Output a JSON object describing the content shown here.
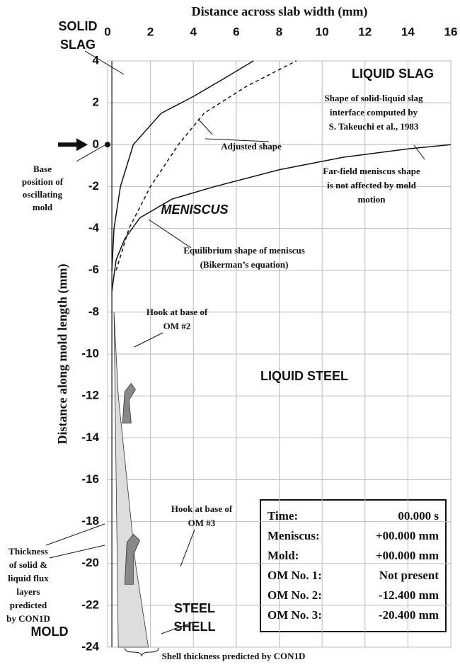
{
  "chart_data": {
    "type": "line",
    "x_label": "Distance across slab width (mm)",
    "y_label": "Distance along mold length (mm)",
    "xlim": [
      0,
      16
    ],
    "xticks": [
      0,
      2,
      4,
      6,
      8,
      10,
      12,
      14,
      16
    ],
    "ylim": [
      -24,
      4
    ],
    "yticks": [
      4,
      2,
      0,
      -2,
      -4,
      -6,
      -8,
      -10,
      -12,
      -14,
      -16,
      -18,
      -20,
      -22,
      -24
    ],
    "grid": true,
    "series": [
      {
        "name": "Equilibrium shape of meniscus",
        "color": "#111",
        "dash": false,
        "x": [
          0.2,
          0.4,
          0.8,
          1.5,
          3,
          5,
          8,
          11,
          14,
          16
        ],
        "values": [
          -7,
          -5.5,
          -4.5,
          -3.5,
          -2.6,
          -2,
          -1.2,
          -0.6,
          -0.2,
          0
        ]
      },
      {
        "name": "Adjusted shape",
        "color": "#111",
        "dash": false,
        "x": [
          0.2,
          0.3,
          0.6,
          1.2,
          2.5,
          4,
          5.5,
          6.8
        ],
        "values": [
          -6,
          -4,
          -2,
          0,
          1.5,
          2.3,
          3.2,
          4
        ]
      },
      {
        "name": "Shape of solid-liquid slag interface computed by S. Takeuchi et al., 1983",
        "color": "#111",
        "dash": true,
        "x": [
          0.4,
          1,
          2,
          3.3,
          4.5,
          6.5,
          8.8
        ],
        "values": [
          -6,
          -4,
          -2,
          0,
          1.5,
          2.8,
          4
        ]
      }
    ],
    "annotations": [
      "SOLID",
      "SLAG",
      "LIQUID SLAG",
      "Shape of solid-liquid slag",
      "interface computed by",
      "S. Takeuchi et al., 1983",
      "Adjusted shape",
      "Base",
      "position of",
      "oscillating",
      "mold",
      "Far-field meniscus shape",
      "is not affected by mold",
      "motion",
      "MENISCUS",
      "Equilibrium shape of meniscus",
      "(Bikerman’s equation)",
      "Hook at base of",
      "OM #2",
      "LIQUID STEEL",
      "Thickness",
      "of solid &",
      "liquid flux",
      "layers",
      "predicted",
      "by CON1D",
      "Hook at base of",
      "OM #3",
      "STEEL",
      "SHELL",
      "MOLD",
      "Shell thickness predicted by CON1D"
    ],
    "info_box": [
      [
        "Time:",
        "00.000 s"
      ],
      [
        "Meniscus:",
        "+00.000 mm"
      ],
      [
        "Mold:",
        "+00.000 mm"
      ],
      [
        "OM No. 1:",
        "Not present"
      ],
      [
        "OM No. 2:",
        "-12.400 mm"
      ],
      [
        "OM No. 3:",
        "-20.400 mm"
      ]
    ]
  }
}
